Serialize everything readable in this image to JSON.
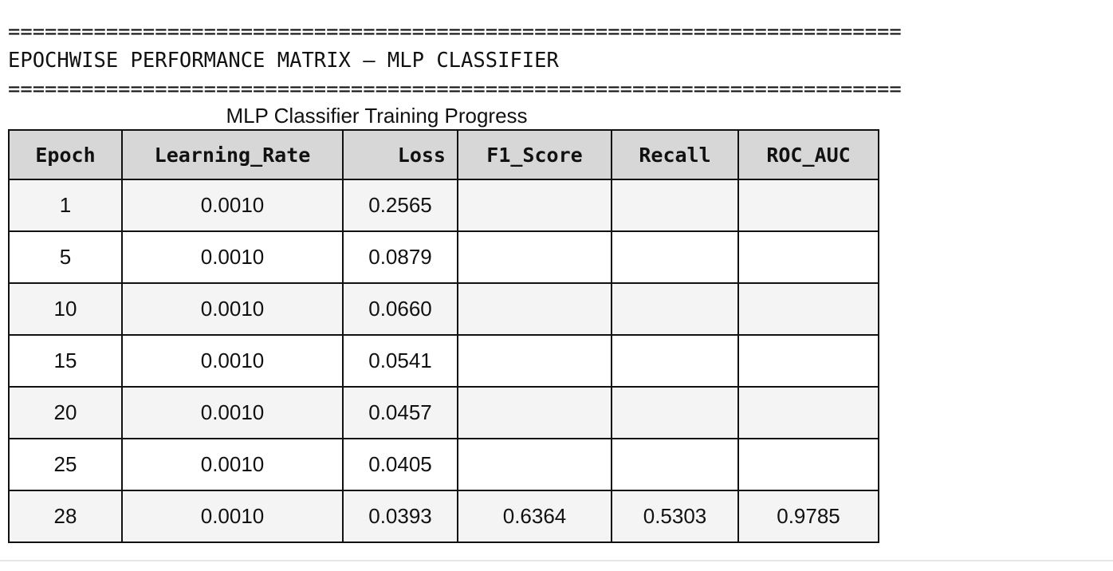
{
  "header": {
    "rule_top": "=========================================================================",
    "title": "EPOCHWISE PERFORMANCE MATRIX — MLP CLASSIFIER",
    "rule_bottom": "========================================================================="
  },
  "table": {
    "caption": "MLP Classifier Training Progress",
    "columns": [
      "Epoch",
      "Learning_Rate",
      "Loss",
      "F1_Score",
      "Recall",
      "ROC_AUC"
    ],
    "rows": [
      [
        "1",
        "0.0010",
        "0.2565",
        "",
        "",
        ""
      ],
      [
        "5",
        "0.0010",
        "0.0879",
        "",
        "",
        ""
      ],
      [
        "10",
        "0.0010",
        "0.0660",
        "",
        "",
        ""
      ],
      [
        "15",
        "0.0010",
        "0.0541",
        "",
        "",
        ""
      ],
      [
        "20",
        "0.0010",
        "0.0457",
        "",
        "",
        ""
      ],
      [
        "25",
        "0.0010",
        "0.0405",
        "",
        "",
        ""
      ],
      [
        "28",
        "0.0010",
        "0.0393",
        "0.6364",
        "0.5303",
        "0.9785"
      ]
    ]
  },
  "colors": {
    "header_bg": "#d7d7d7",
    "row_odd": "#f4f4f4",
    "row_even": "#ffffff",
    "border": "#111111"
  }
}
